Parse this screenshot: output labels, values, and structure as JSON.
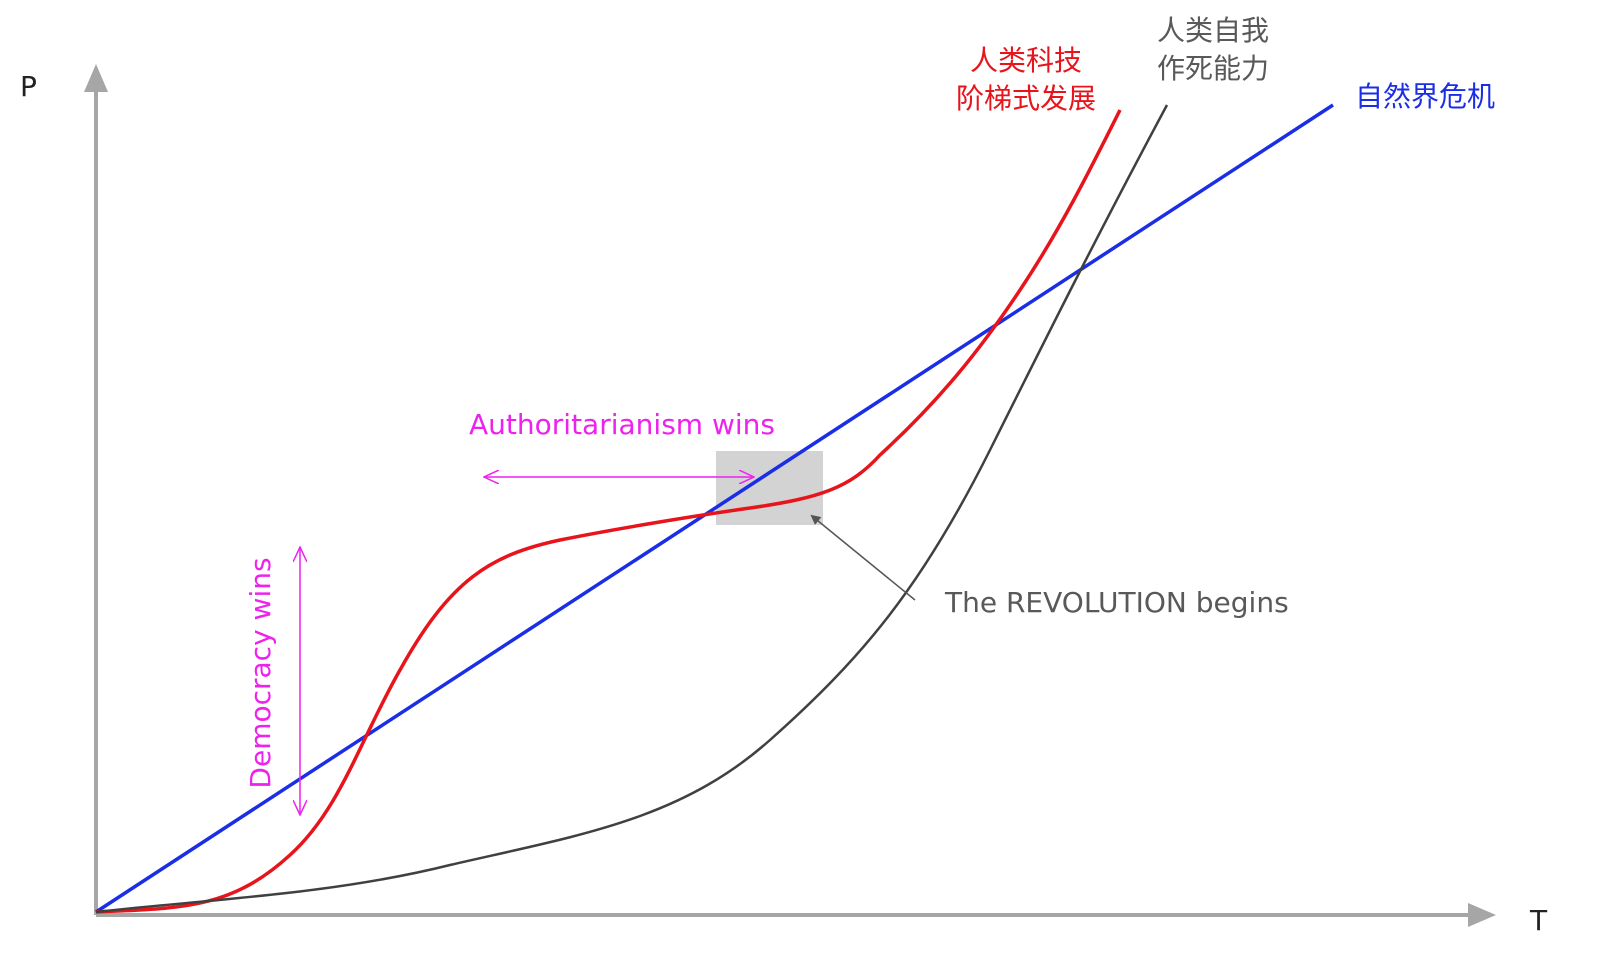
{
  "axes": {
    "y_label": "P",
    "x_label": "T"
  },
  "curves": [
    {
      "name": "technology",
      "lines": [
        "人类科技",
        "阶梯式发展"
      ]
    },
    {
      "name": "self-destruction",
      "lines": [
        "人类自我",
        "作死能力"
      ]
    },
    {
      "name": "nature-crisis",
      "lines": [
        "自然界危机"
      ]
    }
  ],
  "annotations": {
    "authoritarianism": "Authoritarianism wins",
    "democracy": "Democracy wins",
    "revolution": "The REVOLUTION begins"
  }
}
